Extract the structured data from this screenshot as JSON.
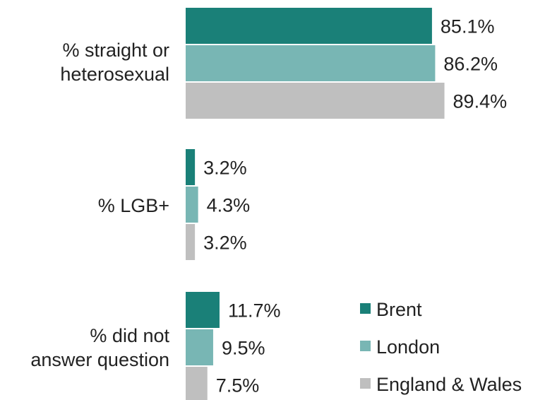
{
  "chart_data": {
    "type": "bar",
    "orientation": "horizontal",
    "categories": [
      [
        "% straight or",
        "heterosexual"
      ],
      [
        "% LGB+"
      ],
      [
        "% did not",
        "answer question"
      ]
    ],
    "series": [
      {
        "name": "Brent",
        "color": "#1a8078",
        "values": [
          85.1,
          3.2,
          11.7
        ],
        "labels": [
          "85.1%",
          "3.2%",
          "11.7%"
        ]
      },
      {
        "name": "London",
        "color": "#78b6b4",
        "values": [
          86.2,
          4.3,
          9.5
        ],
        "labels": [
          "86.2%",
          "4.3%",
          "9.5%"
        ]
      },
      {
        "name": "England & Wales",
        "color": "#bfbfbf",
        "values": [
          89.4,
          3.2,
          7.5
        ],
        "labels": [
          "89.4%",
          "3.2%",
          "7.5%"
        ]
      }
    ],
    "legend": {
      "position": "bottom-right"
    },
    "grid": false
  }
}
